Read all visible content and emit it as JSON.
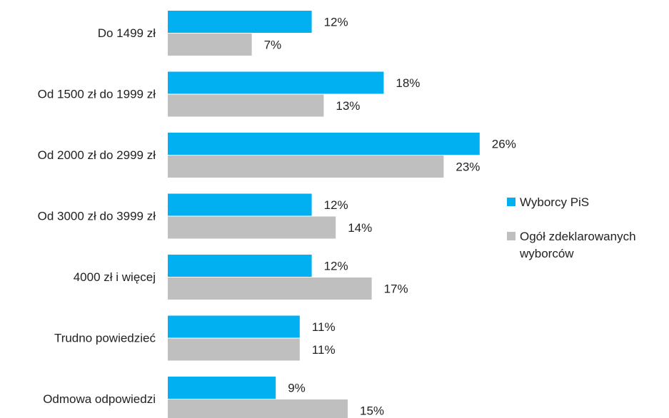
{
  "chart_data": {
    "type": "bar",
    "orientation": "horizontal",
    "categories": [
      "Do 1499 zł",
      "Od 1500 zł do 1999 zł",
      "Od 2000 zł do 2999 zł",
      "Od 3000 zł do 3999 zł",
      "4000 zł i więcej",
      "Trudno powiedzieć",
      "Odmowa odpowiedzi"
    ],
    "series": [
      {
        "name": "Wyborcy PiS",
        "color": "#00b0f0",
        "values": [
          12,
          18,
          26,
          12,
          12,
          11,
          9
        ],
        "labels": [
          "12%",
          "18%",
          "26%",
          "12%",
          "12%",
          "11%",
          "9%"
        ]
      },
      {
        "name_lines": [
          "Ogół zdeklarowanych",
          "wyborców"
        ],
        "color": "#bfbfbf",
        "values": [
          7,
          13,
          23,
          14,
          17,
          11,
          15
        ],
        "labels": [
          "7%",
          "13%",
          "23%",
          "14%",
          "17%",
          "11%",
          "15%"
        ]
      }
    ],
    "unit": "%",
    "axis_visible": false,
    "grid": false,
    "legend_position": "right"
  }
}
